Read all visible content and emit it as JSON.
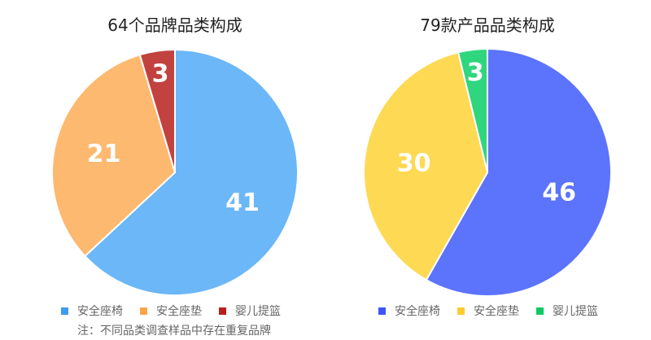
{
  "chart_data": [
    {
      "type": "pie",
      "title": "64个品牌品类构成",
      "categories": [
        "安全座椅",
        "安全座垫",
        "婴儿提篮"
      ],
      "values": [
        41,
        21,
        3
      ],
      "colors": [
        "#6cb7f8",
        "#fdb96f",
        "#c2423f"
      ],
      "legend_colors": [
        "#3d9cf0",
        "#fca64a",
        "#b8201e"
      ],
      "legend": "bottom",
      "note": "注：不同品类调查样品中存在重复品牌"
    },
    {
      "type": "pie",
      "title": "79款产品品类构成",
      "categories": [
        "安全座椅",
        "安全座垫",
        "婴儿提篮"
      ],
      "values": [
        46,
        30,
        3
      ],
      "colors": [
        "#5c73fb",
        "#fed954",
        "#2fd67e"
      ],
      "legend_colors": [
        "#3d55f5",
        "#fecb2e",
        "#10c964"
      ],
      "legend": "bottom"
    }
  ]
}
